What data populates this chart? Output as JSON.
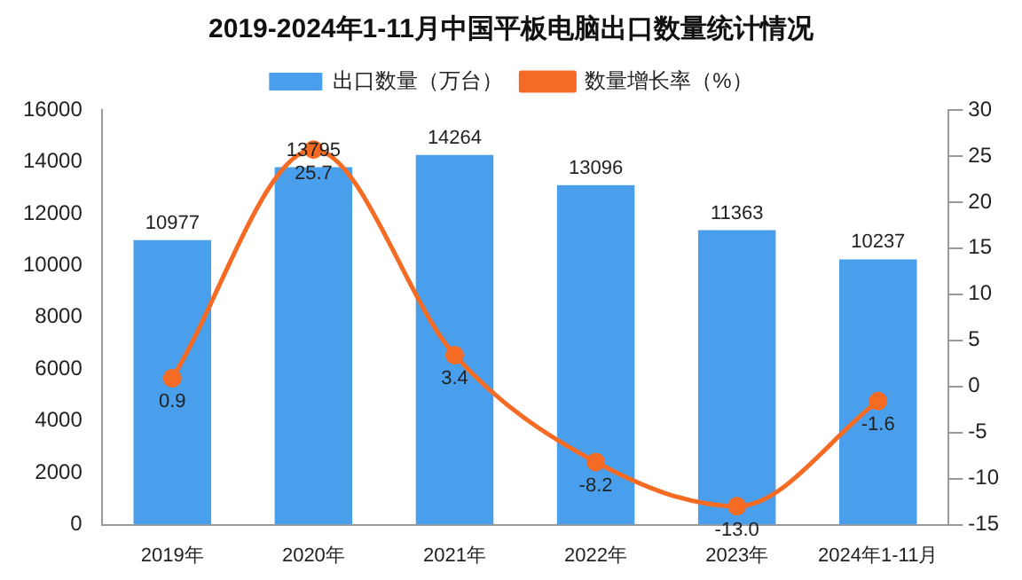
{
  "chart_data": {
    "type": "bar",
    "title": "2019-2024年1-11月中国平板电脑出口数量统计情况",
    "categories": [
      "2019年",
      "2020年",
      "2021年",
      "2022年",
      "2023年",
      "2024年1-11月"
    ],
    "series": [
      {
        "name": "出口数量（万台）",
        "color": "#4a9fec",
        "values": [
          10977,
          13795,
          14264,
          13096,
          11363,
          10237
        ]
      },
      {
        "name": "数量增长率（%）",
        "type": "line",
        "axis": "y2",
        "color": "#f56b24",
        "values": [
          0.9,
          25.7,
          3.4,
          -8.2,
          -13.0,
          -1.6
        ],
        "value_labels": [
          "0.9",
          "25.7",
          "3.4",
          "-8.2",
          "-13.0",
          "-1.6"
        ]
      }
    ],
    "ylim": [
      0,
      16000
    ],
    "yticks": [
      0,
      2000,
      4000,
      6000,
      8000,
      10000,
      12000,
      14000,
      16000
    ],
    "y2lim": [
      -15,
      30
    ],
    "y2ticks": [
      30,
      25,
      20,
      15,
      10,
      5,
      0,
      -5,
      -10,
      -15
    ],
    "data_labels": true,
    "legend": "top",
    "marker": "circle",
    "grid": false
  }
}
